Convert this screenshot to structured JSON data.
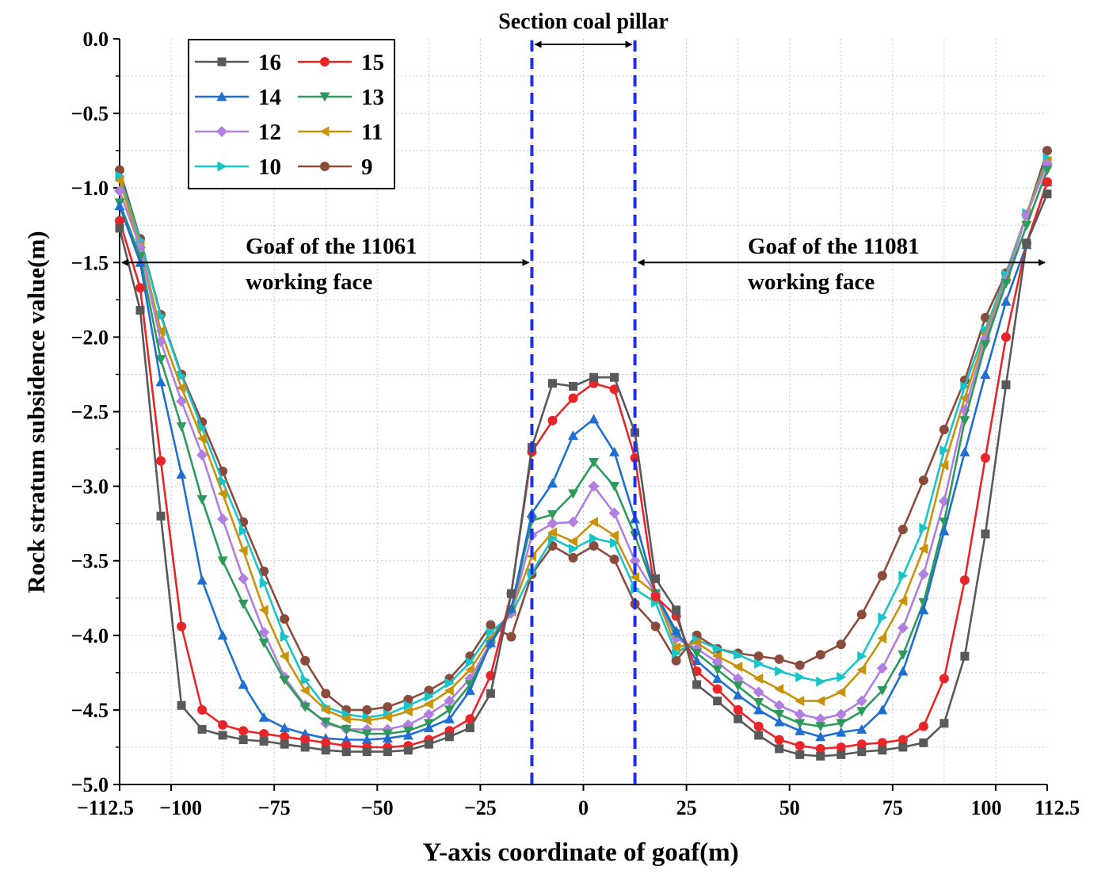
{
  "chart_data": {
    "type": "line",
    "title": "",
    "xlabel": "Y-axis coordinate of goaf(m)",
    "ylabel": "Rock stratum subsidence value(m)",
    "xlim": [
      -112.5,
      112.5
    ],
    "ylim": [
      -5.0,
      0.0
    ],
    "x_ticks": [
      -112.5,
      -100,
      -75,
      -50,
      -25,
      0,
      25,
      50,
      75,
      100,
      112.5
    ],
    "x_tick_labels": [
      "−112.5",
      "−100",
      "−75",
      "−50",
      "−25",
      "0",
      "25",
      "50",
      "75",
      "100",
      "112.5"
    ],
    "y_ticks": [
      0.0,
      -0.5,
      -1.0,
      -1.5,
      -2.0,
      -2.5,
      -3.0,
      -3.5,
      -4.0,
      -4.5,
      -5.0
    ],
    "y_tick_labels": [
      "0.0",
      "−0.5",
      "−1.0",
      "−1.5",
      "−2.0",
      "−2.5",
      "−3.0",
      "−3.5",
      "−4.0",
      "−4.5",
      "−5.0"
    ],
    "grid": true,
    "legend_position": "top-left",
    "annotations": {
      "pillar_title": "Section coal pillar",
      "left_goaf_line1": "Goaf of the 11061",
      "left_goaf_line2": "working face",
      "right_goaf_line1": "Goaf of the 11081",
      "right_goaf_line2": "working face"
    },
    "pillar_bounds": [
      -12.5,
      12.5
    ],
    "x": [
      -112.5,
      -107.5,
      -102.5,
      -97.5,
      -92.5,
      -87.5,
      -82.5,
      -77.5,
      -72.5,
      -67.5,
      -62.5,
      -57.5,
      -52.5,
      -47.5,
      -42.5,
      -37.5,
      -32.5,
      -27.5,
      -22.5,
      -17.5,
      -12.5,
      -7.5,
      -2.5,
      2.5,
      7.5,
      12.5,
      17.5,
      22.5,
      27.5,
      32.5,
      37.5,
      42.5,
      47.5,
      52.5,
      57.5,
      62.5,
      67.5,
      72.5,
      77.5,
      82.5,
      87.5,
      92.5,
      97.5,
      102.5,
      107.5,
      112.5
    ],
    "series": [
      {
        "name": "16",
        "color": "#595959",
        "marker": "square",
        "values": [
          -1.27,
          -1.82,
          -3.2,
          -4.47,
          -4.63,
          -4.67,
          -4.7,
          -4.71,
          -4.73,
          -4.75,
          -4.77,
          -4.78,
          -4.78,
          -4.78,
          -4.77,
          -4.73,
          -4.68,
          -4.62,
          -4.39,
          -3.72,
          -2.74,
          -2.31,
          -2.33,
          -2.27,
          -2.27,
          -2.64,
          -3.62,
          -3.83,
          -4.33,
          -4.44,
          -4.56,
          -4.67,
          -4.76,
          -4.8,
          -4.81,
          -4.8,
          -4.78,
          -4.77,
          -4.75,
          -4.72,
          -4.59,
          -4.14,
          -3.32,
          -2.32,
          -1.37,
          -1.04
        ]
      },
      {
        "name": "15",
        "color": "#e8262a",
        "marker": "circle",
        "values": [
          -1.22,
          -1.67,
          -2.83,
          -3.94,
          -4.5,
          -4.6,
          -4.64,
          -4.66,
          -4.68,
          -4.7,
          -4.72,
          -4.74,
          -4.75,
          -4.75,
          -4.74,
          -4.7,
          -4.64,
          -4.56,
          -4.27,
          -3.72,
          -2.77,
          -2.56,
          -2.41,
          -2.31,
          -2.35,
          -2.81,
          -3.74,
          -3.87,
          -4.24,
          -4.36,
          -4.5,
          -4.61,
          -4.7,
          -4.74,
          -4.76,
          -4.75,
          -4.73,
          -4.72,
          -4.7,
          -4.61,
          -4.29,
          -3.63,
          -2.81,
          -2.0,
          -1.37,
          -0.96
        ]
      },
      {
        "name": "14",
        "color": "#1f6fd0",
        "marker": "triangle-up",
        "values": [
          -1.12,
          -1.5,
          -2.3,
          -2.92,
          -3.63,
          -4.0,
          -4.33,
          -4.55,
          -4.62,
          -4.66,
          -4.69,
          -4.7,
          -4.7,
          -4.69,
          -4.67,
          -4.62,
          -4.56,
          -4.37,
          -4.05,
          -3.82,
          -3.18,
          -2.98,
          -2.66,
          -2.55,
          -2.77,
          -3.22,
          -3.72,
          -3.97,
          -4.17,
          -4.29,
          -4.4,
          -4.5,
          -4.58,
          -4.64,
          -4.68,
          -4.65,
          -4.63,
          -4.5,
          -4.24,
          -3.83,
          -3.3,
          -2.77,
          -2.25,
          -1.76,
          -1.38,
          -0.96
        ]
      },
      {
        "name": "13",
        "color": "#2e9a5a",
        "marker": "triangle-down",
        "values": [
          -1.1,
          -1.46,
          -2.15,
          -2.6,
          -3.09,
          -3.5,
          -3.79,
          -4.05,
          -4.3,
          -4.48,
          -4.58,
          -4.63,
          -4.66,
          -4.66,
          -4.64,
          -4.59,
          -4.5,
          -4.33,
          -4.06,
          -3.83,
          -3.23,
          -3.19,
          -3.05,
          -2.84,
          -3.0,
          -3.33,
          -3.72,
          -3.99,
          -4.12,
          -4.23,
          -4.34,
          -4.45,
          -4.53,
          -4.59,
          -4.61,
          -4.59,
          -4.51,
          -4.37,
          -4.13,
          -3.78,
          -3.24,
          -2.56,
          -2.05,
          -1.64,
          -1.25,
          -0.88
        ]
      },
      {
        "name": "12",
        "color": "#b07fe0",
        "marker": "diamond",
        "values": [
          -1.02,
          -1.4,
          -2.03,
          -2.43,
          -2.79,
          -3.22,
          -3.62,
          -3.98,
          -4.28,
          -4.47,
          -4.59,
          -4.63,
          -4.63,
          -4.63,
          -4.6,
          -4.53,
          -4.44,
          -4.29,
          -4.05,
          -3.85,
          -3.33,
          -3.25,
          -3.24,
          -3.0,
          -3.18,
          -3.5,
          -3.72,
          -4.02,
          -4.09,
          -4.18,
          -4.29,
          -4.38,
          -4.47,
          -4.53,
          -4.56,
          -4.53,
          -4.44,
          -4.22,
          -3.95,
          -3.59,
          -3.1,
          -2.49,
          -2.01,
          -1.62,
          -1.18,
          -0.84
        ]
      },
      {
        "name": "11",
        "color": "#c8930c",
        "marker": "triangle-left",
        "values": [
          -0.95,
          -1.39,
          -1.96,
          -2.34,
          -2.68,
          -3.05,
          -3.43,
          -3.83,
          -4.14,
          -4.37,
          -4.5,
          -4.56,
          -4.57,
          -4.55,
          -4.51,
          -4.46,
          -4.37,
          -4.23,
          -4.02,
          -3.84,
          -3.47,
          -3.31,
          -3.37,
          -3.24,
          -3.33,
          -3.61,
          -3.72,
          -4.08,
          -4.05,
          -4.14,
          -4.21,
          -4.29,
          -4.36,
          -4.44,
          -4.44,
          -4.38,
          -4.23,
          -4.02,
          -3.77,
          -3.42,
          -2.86,
          -2.41,
          -1.98,
          -1.61,
          -1.17,
          -0.82
        ]
      },
      {
        "name": "10",
        "color": "#19c4c8",
        "marker": "triangle-right",
        "values": [
          -0.92,
          -1.35,
          -1.86,
          -2.26,
          -2.61,
          -2.97,
          -3.3,
          -3.65,
          -4.01,
          -4.3,
          -4.48,
          -4.53,
          -4.55,
          -4.53,
          -4.47,
          -4.41,
          -4.32,
          -4.18,
          -3.98,
          -3.86,
          -3.58,
          -3.35,
          -3.42,
          -3.35,
          -3.38,
          -3.69,
          -3.78,
          -4.12,
          -4.03,
          -4.09,
          -4.13,
          -4.19,
          -4.24,
          -4.28,
          -4.31,
          -4.28,
          -4.14,
          -3.88,
          -3.6,
          -3.28,
          -2.76,
          -2.33,
          -1.95,
          -1.58,
          -1.17,
          -0.8
        ]
      },
      {
        "name": "9",
        "color": "#8a4b3c",
        "marker": "circle",
        "values": [
          -0.88,
          -1.34,
          -1.85,
          -2.25,
          -2.57,
          -2.9,
          -3.24,
          -3.57,
          -3.89,
          -4.17,
          -4.39,
          -4.5,
          -4.5,
          -4.48,
          -4.43,
          -4.37,
          -4.29,
          -4.14,
          -3.93,
          -4.01,
          -3.59,
          -3.4,
          -3.48,
          -3.4,
          -3.49,
          -3.79,
          -3.94,
          -4.17,
          -4.0,
          -4.09,
          -4.12,
          -4.14,
          -4.16,
          -4.2,
          -4.13,
          -4.06,
          -3.86,
          -3.6,
          -3.29,
          -2.96,
          -2.62,
          -2.29,
          -1.87,
          -1.57,
          -1.18,
          -0.75
        ]
      }
    ]
  }
}
